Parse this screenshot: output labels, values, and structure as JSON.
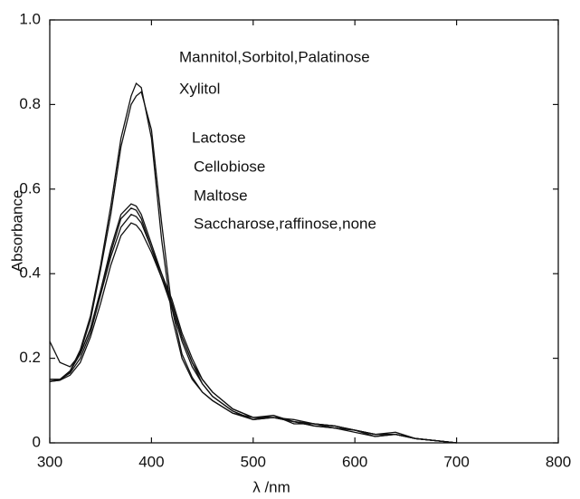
{
  "chart_data": {
    "type": "line",
    "x_label": "λ /nm",
    "y_label": "Absorbance",
    "x": [
      300,
      310,
      320,
      330,
      340,
      350,
      360,
      370,
      380,
      385,
      390,
      400,
      410,
      420,
      430,
      440,
      450,
      460,
      480,
      500,
      520,
      540,
      560,
      580,
      600,
      620,
      640,
      660,
      680,
      700
    ],
    "series": [
      {
        "name": "Mannitol,Sorbitol,Palatinose",
        "color": "#111111",
        "values": [
          0.15,
          0.15,
          0.17,
          0.22,
          0.3,
          0.42,
          0.56,
          0.72,
          0.82,
          0.85,
          0.84,
          0.72,
          0.48,
          0.3,
          0.2,
          0.15,
          0.12,
          0.1,
          0.07,
          0.06,
          0.06,
          0.055,
          0.045,
          0.04,
          0.03,
          0.02,
          0.02,
          0.01,
          0.005,
          0
        ]
      },
      {
        "name": "Xylitol",
        "color": "#111111",
        "values": [
          0.145,
          0.148,
          0.168,
          0.215,
          0.29,
          0.41,
          0.54,
          0.7,
          0.8,
          0.82,
          0.83,
          0.74,
          0.52,
          0.32,
          0.21,
          0.155,
          0.12,
          0.1,
          0.07,
          0.055,
          0.06,
          0.05,
          0.045,
          0.04,
          0.03,
          0.02,
          0.02,
          0.01,
          0.005,
          0
        ]
      },
      {
        "name": "Lactose",
        "color": "#111111",
        "values": [
          0.24,
          0.19,
          0.18,
          0.21,
          0.27,
          0.36,
          0.46,
          0.54,
          0.565,
          0.56,
          0.54,
          0.47,
          0.4,
          0.33,
          0.25,
          0.19,
          0.14,
          0.11,
          0.075,
          0.055,
          0.065,
          0.05,
          0.045,
          0.04,
          0.03,
          0.02,
          0.025,
          0.01,
          0.005,
          0
        ]
      },
      {
        "name": "Cellobiose",
        "color": "#111111",
        "values": [
          0.15,
          0.15,
          0.17,
          0.21,
          0.27,
          0.36,
          0.45,
          0.53,
          0.555,
          0.55,
          0.53,
          0.46,
          0.39,
          0.32,
          0.24,
          0.18,
          0.14,
          0.11,
          0.075,
          0.055,
          0.06,
          0.05,
          0.04,
          0.035,
          0.03,
          0.02,
          0.02,
          0.01,
          0.005,
          0
        ]
      },
      {
        "name": "Maltose",
        "color": "#111111",
        "values": [
          0.145,
          0.15,
          0.165,
          0.2,
          0.26,
          0.35,
          0.44,
          0.51,
          0.54,
          0.535,
          0.52,
          0.46,
          0.4,
          0.34,
          0.26,
          0.2,
          0.15,
          0.12,
          0.08,
          0.06,
          0.065,
          0.045,
          0.045,
          0.035,
          0.03,
          0.015,
          0.02,
          0.01,
          0.005,
          0
        ]
      },
      {
        "name": "Saccharose,raffinose,none",
        "color": "#111111",
        "values": [
          0.145,
          0.148,
          0.16,
          0.19,
          0.25,
          0.33,
          0.42,
          0.49,
          0.52,
          0.515,
          0.5,
          0.45,
          0.39,
          0.33,
          0.25,
          0.19,
          0.15,
          0.12,
          0.08,
          0.06,
          0.06,
          0.05,
          0.04,
          0.035,
          0.025,
          0.015,
          0.02,
          0.01,
          0.005,
          0
        ]
      }
    ],
    "xlim": [
      300,
      800
    ],
    "xticks": [
      300,
      400,
      500,
      600,
      700,
      800
    ],
    "ylim": [
      0,
      1
    ],
    "yticks": [
      0,
      0.2,
      0.4,
      0.6,
      0.8,
      {
        "value": 1,
        "label": "1.0"
      }
    ],
    "grid": false
  }
}
